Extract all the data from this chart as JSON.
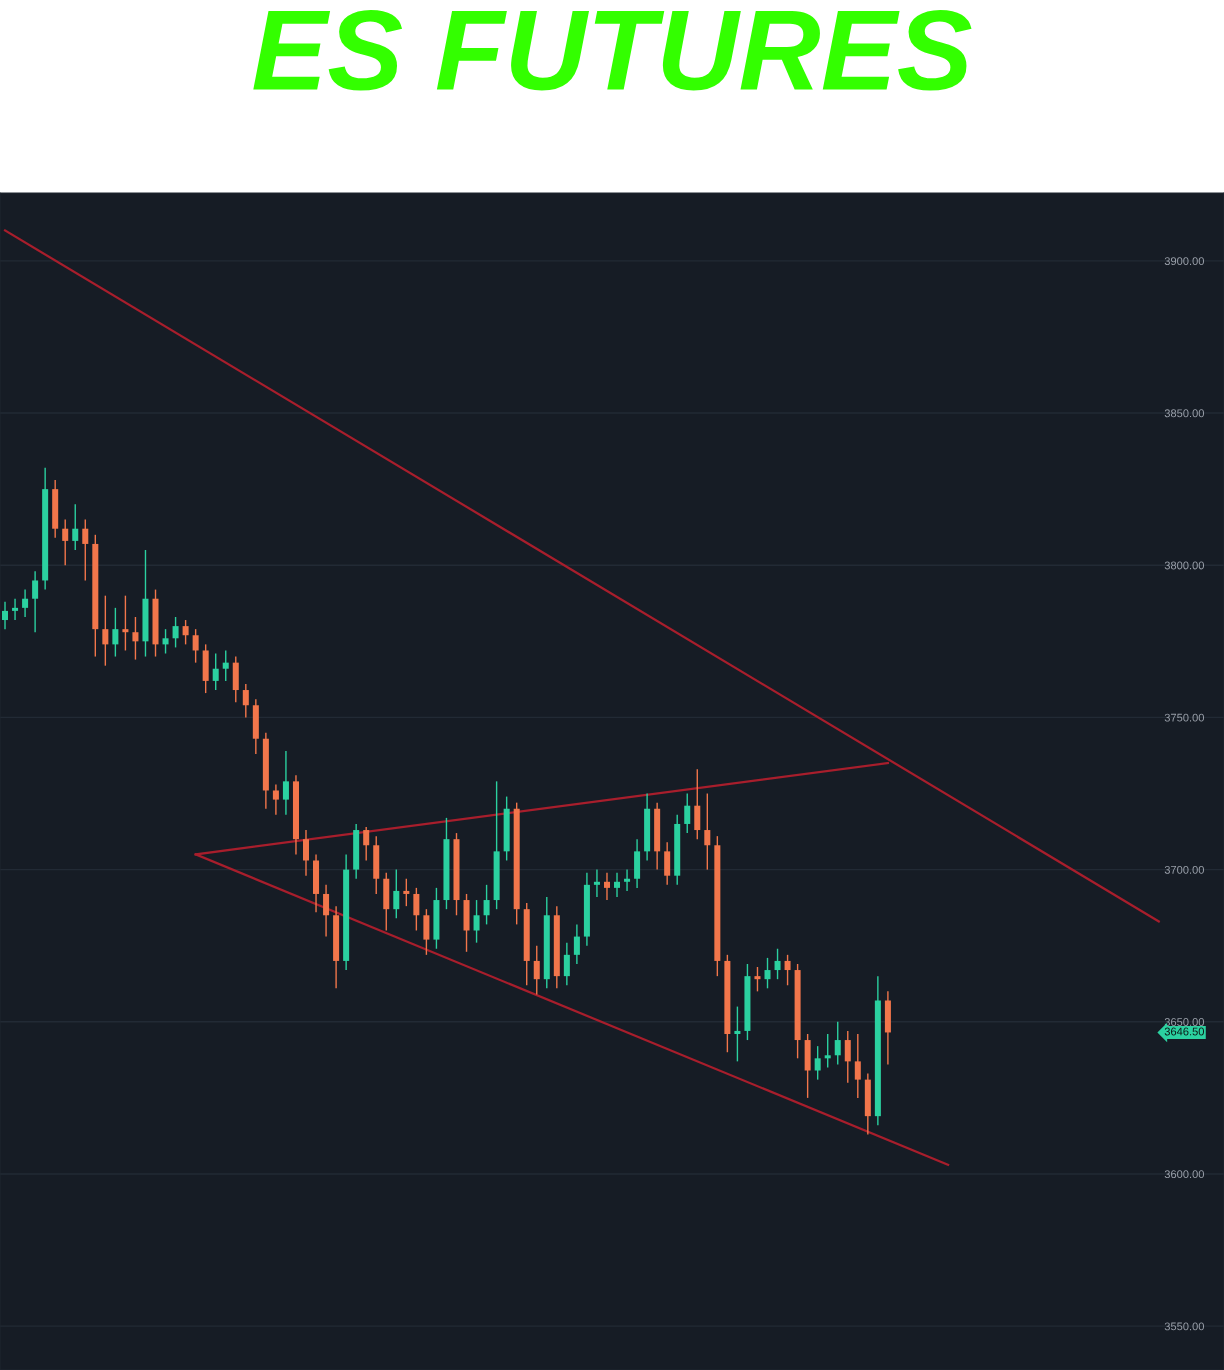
{
  "chart_data": {
    "type": "candlestick",
    "title": "ES FUTURES",
    "categories": [
      null,
      null,
      null,
      null,
      null,
      null,
      null,
      null,
      null,
      null,
      null,
      null,
      null,
      null,
      null,
      null,
      null,
      null,
      null,
      null,
      null,
      null,
      null,
      null,
      null,
      null,
      null,
      null,
      null,
      null,
      null,
      null,
      null,
      null,
      null,
      null,
      null,
      null,
      null,
      null,
      null,
      null,
      null,
      null,
      null,
      null,
      null,
      null,
      null,
      null,
      null,
      null,
      null,
      null,
      null,
      null,
      null,
      null,
      null,
      null,
      null,
      null,
      null,
      null,
      null,
      null,
      null,
      null,
      null,
      null,
      null,
      null,
      null,
      null,
      null,
      null,
      null,
      null,
      null,
      null,
      null,
      null,
      null,
      null,
      null,
      null,
      null,
      null,
      null,
      null,
      null,
      null,
      null,
      null,
      null,
      null,
      null,
      null,
      null,
      null,
      null,
      null,
      null,
      null,
      null,
      null,
      null,
      null,
      null,
      null,
      null,
      null,
      null,
      null,
      null,
      null,
      null,
      null,
      null,
      null,
      null,
      null
    ],
    "ohlc": [
      [
        3782,
        3788,
        3779,
        3785
      ],
      [
        3785,
        3789,
        3782,
        3786
      ],
      [
        3786,
        3792,
        3783,
        3789
      ],
      [
        3789,
        3798,
        3778,
        3795
      ],
      [
        3795,
        3832,
        3792,
        3825
      ],
      [
        3825,
        3828,
        3809,
        3812
      ],
      [
        3812,
        3815,
        3800,
        3808
      ],
      [
        3808,
        3820,
        3805,
        3812
      ],
      [
        3812,
        3815,
        3795,
        3807
      ],
      [
        3807,
        3810,
        3770,
        3779
      ],
      [
        3779,
        3790,
        3767,
        3774
      ],
      [
        3774,
        3786,
        3770,
        3779
      ],
      [
        3779,
        3790,
        3772,
        3778
      ],
      [
        3778,
        3783,
        3769,
        3775
      ],
      [
        3775,
        3805,
        3770,
        3789
      ],
      [
        3789,
        3792,
        3770,
        3774
      ],
      [
        3774,
        3779,
        3771,
        3776
      ],
      [
        3776,
        3783,
        3773,
        3780
      ],
      [
        3780,
        3782,
        3774,
        3777
      ],
      [
        3777,
        3779,
        3768,
        3772
      ],
      [
        3772,
        3774,
        3758,
        3762
      ],
      [
        3762,
        3771,
        3759,
        3766
      ],
      [
        3766,
        3772,
        3762,
        3768
      ],
      [
        3768,
        3770,
        3755,
        3759
      ],
      [
        3759,
        3761,
        3750,
        3754
      ],
      [
        3754,
        3756,
        3738,
        3743
      ],
      [
        3743,
        3745,
        3720,
        3726
      ],
      [
        3726,
        3728,
        3718,
        3723
      ],
      [
        3723,
        3739,
        3718,
        3729
      ],
      [
        3729,
        3731,
        3705,
        3710
      ],
      [
        3710,
        3713,
        3698,
        3703
      ],
      [
        3703,
        3705,
        3686,
        3692
      ],
      [
        3692,
        3695,
        3678,
        3685
      ],
      [
        3685,
        3688,
        3661,
        3670
      ],
      [
        3670,
        3705,
        3667,
        3700
      ],
      [
        3700,
        3715,
        3697,
        3713
      ],
      [
        3713,
        3714,
        3703,
        3708
      ],
      [
        3708,
        3711,
        3692,
        3697
      ],
      [
        3697,
        3699,
        3680,
        3687
      ],
      [
        3687,
        3700,
        3684,
        3693
      ],
      [
        3693,
        3697,
        3688,
        3692
      ],
      [
        3692,
        3694,
        3680,
        3685
      ],
      [
        3685,
        3687,
        3672,
        3677
      ],
      [
        3677,
        3694,
        3674,
        3690
      ],
      [
        3690,
        3717,
        3687,
        3710
      ],
      [
        3710,
        3712,
        3685,
        3690
      ],
      [
        3690,
        3692,
        3673,
        3680
      ],
      [
        3680,
        3690,
        3676,
        3685
      ],
      [
        3685,
        3695,
        3682,
        3690
      ],
      [
        3690,
        3729,
        3687,
        3706
      ],
      [
        3706,
        3724,
        3703,
        3720
      ],
      [
        3720,
        3722,
        3682,
        3687
      ],
      [
        3687,
        3689,
        3662,
        3670
      ],
      [
        3670,
        3675,
        3659,
        3664
      ],
      [
        3664,
        3691,
        3661,
        3685
      ],
      [
        3685,
        3688,
        3661,
        3665
      ],
      [
        3665,
        3676,
        3662,
        3672
      ],
      [
        3672,
        3682,
        3669,
        3678
      ],
      [
        3678,
        3699,
        3675,
        3695
      ],
      [
        3695,
        3700,
        3691,
        3696
      ],
      [
        3696,
        3699,
        3690,
        3694
      ],
      [
        3694,
        3699,
        3691,
        3696
      ],
      [
        3696,
        3700,
        3693,
        3697
      ],
      [
        3697,
        3710,
        3694,
        3706
      ],
      [
        3706,
        3725,
        3703,
        3720
      ],
      [
        3720,
        3722,
        3700,
        3706
      ],
      [
        3706,
        3709,
        3695,
        3698
      ],
      [
        3698,
        3718,
        3695,
        3715
      ],
      [
        3715,
        3725,
        3712,
        3721
      ],
      [
        3721,
        3733,
        3710,
        3713
      ],
      [
        3713,
        3725,
        3700,
        3708
      ],
      [
        3708,
        3711,
        3665,
        3670
      ],
      [
        3670,
        3672,
        3640,
        3646
      ],
      [
        3646,
        3655,
        3637,
        3647
      ],
      [
        3647,
        3669,
        3644,
        3665
      ],
      [
        3665,
        3668,
        3660,
        3664
      ],
      [
        3664,
        3671,
        3661,
        3667
      ],
      [
        3667,
        3674,
        3664,
        3670
      ],
      [
        3670,
        3672,
        3662,
        3667
      ],
      [
        3667,
        3669,
        3638,
        3644
      ],
      [
        3644,
        3646,
        3625,
        3634
      ],
      [
        3634,
        3642,
        3631,
        3638
      ],
      [
        3638,
        3646,
        3635,
        3639
      ],
      [
        3639,
        3650,
        3636,
        3644
      ],
      [
        3644,
        3647,
        3630,
        3637
      ],
      [
        3637,
        3646,
        3625,
        3631
      ],
      [
        3631,
        3633,
        3613,
        3619
      ],
      [
        3619,
        3665,
        3616,
        3657
      ],
      [
        3657,
        3660,
        3636,
        3646.5
      ],
      null,
      null,
      null,
      null,
      null,
      null,
      null,
      null,
      null,
      null,
      null,
      null,
      null,
      null,
      null,
      null,
      null,
      null,
      null,
      null,
      null,
      null,
      null,
      null,
      null,
      null,
      null,
      null,
      null,
      null,
      null,
      null,
      null
    ],
    "colors": [
      "#2bd1a0",
      "#2bd1a0",
      "#2bd1a0",
      "#2bd1a0",
      "#2bd1a0",
      "#f2764b",
      "#f2764b",
      "#2bd1a0",
      "#f2764b",
      "#f2764b",
      "#f2764b",
      "#2bd1a0",
      "#f2764b",
      "#f2764b",
      "#2bd1a0",
      "#f2764b",
      "#2bd1a0",
      "#2bd1a0",
      "#f2764b",
      "#f2764b",
      "#f2764b",
      "#2bd1a0",
      "#2bd1a0",
      "#f2764b",
      "#f2764b",
      "#f2764b",
      "#f2764b",
      "#f2764b",
      "#2bd1a0",
      "#f2764b",
      "#f2764b",
      "#f2764b",
      "#f2764b",
      "#f2764b",
      "#2bd1a0",
      "#2bd1a0",
      "#f2764b",
      "#f2764b",
      "#f2764b",
      "#2bd1a0",
      "#f2764b",
      "#f2764b",
      "#f2764b",
      "#2bd1a0",
      "#2bd1a0",
      "#f2764b",
      "#f2764b",
      "#2bd1a0",
      "#2bd1a0",
      "#2bd1a0",
      "#2bd1a0",
      "#f2764b",
      "#f2764b",
      "#f2764b",
      "#2bd1a0",
      "#f2764b",
      "#2bd1a0",
      "#2bd1a0",
      "#2bd1a0",
      "#2bd1a0",
      "#f2764b",
      "#2bd1a0",
      "#2bd1a0",
      "#2bd1a0",
      "#2bd1a0",
      "#f2764b",
      "#f2764b",
      "#2bd1a0",
      "#2bd1a0",
      "#f2764b",
      "#f2764b",
      "#f2764b",
      "#f2764b",
      "#2bd1a0",
      "#2bd1a0",
      "#f2764b",
      "#2bd1a0",
      "#2bd1a0",
      "#f2764b",
      "#f2764b",
      "#f2764b",
      "#2bd1a0",
      "#2bd1a0",
      "#2bd1a0",
      "#f2764b",
      "#f2764b",
      "#f2764b",
      "#2bd1a0",
      "#f2764b",
      null,
      null,
      null,
      null,
      null,
      null,
      null,
      null,
      null,
      null,
      null,
      null,
      null,
      null,
      null,
      null,
      null,
      null,
      null,
      null,
      null,
      null,
      null,
      null,
      null,
      null,
      null,
      null,
      null,
      null,
      null,
      null,
      null
    ],
    "series": [
      {
        "type": "line",
        "color": "#a81e2c",
        "values": [
          3910,
          null,
          null,
          null,
          null,
          null,
          null,
          null,
          null,
          null,
          null,
          null,
          null,
          null,
          null,
          null,
          null,
          null,
          null,
          null,
          null,
          null,
          null,
          null,
          null,
          null,
          null,
          null,
          null,
          null,
          null,
          null,
          null,
          null,
          null,
          null,
          null,
          null,
          null,
          null,
          null,
          null,
          null,
          null,
          null,
          null,
          null,
          null,
          null,
          null,
          null,
          null,
          null,
          null,
          null,
          null,
          null,
          null,
          null,
          null,
          null,
          null,
          null,
          null,
          null,
          null,
          null,
          null,
          null,
          null,
          null,
          null,
          null,
          null,
          null,
          null,
          null,
          null,
          null,
          null,
          null,
          null,
          null,
          null,
          null,
          null,
          null,
          null,
          null,
          null,
          null,
          null,
          null,
          null,
          null,
          null,
          null,
          null,
          null,
          null,
          null,
          null,
          null,
          null,
          null,
          null,
          null,
          null,
          null,
          null,
          null,
          null,
          null,
          null,
          null,
          3683,
          null,
          null,
          null,
          null,
          null,
          null
        ]
      },
      {
        "type": "line",
        "color": "#a81e2c",
        "values": [
          null,
          null,
          null,
          null,
          null,
          null,
          null,
          null,
          null,
          null,
          null,
          null,
          null,
          null,
          null,
          null,
          null,
          null,
          null,
          3705,
          null,
          null,
          null,
          null,
          null,
          null,
          null,
          null,
          null,
          null,
          null,
          null,
          null,
          null,
          null,
          null,
          null,
          null,
          null,
          null,
          null,
          null,
          null,
          null,
          null,
          null,
          null,
          null,
          null,
          null,
          null,
          null,
          null,
          null,
          null,
          null,
          null,
          null,
          null,
          null,
          null,
          null,
          null,
          null,
          null,
          null,
          null,
          null,
          null,
          null,
          null,
          null,
          null,
          null,
          null,
          null,
          null,
          null,
          null,
          null,
          null,
          null,
          null,
          null,
          null,
          null,
          null,
          null,
          3735,
          null,
          null,
          null,
          null,
          null,
          null,
          null,
          null,
          null,
          null,
          null,
          null,
          null,
          null,
          null,
          null,
          null,
          null,
          null,
          null,
          null,
          null,
          null,
          null,
          null,
          null,
          null,
          null,
          null,
          null,
          null,
          null,
          null
        ]
      },
      {
        "type": "line",
        "color": "#a81e2c",
        "values": [
          null,
          null,
          null,
          null,
          null,
          null,
          null,
          null,
          null,
          null,
          null,
          null,
          null,
          null,
          null,
          null,
          null,
          null,
          null,
          3705,
          null,
          null,
          null,
          null,
          null,
          null,
          null,
          null,
          null,
          null,
          null,
          null,
          null,
          null,
          null,
          null,
          null,
          null,
          null,
          null,
          null,
          null,
          null,
          null,
          null,
          null,
          null,
          null,
          null,
          null,
          null,
          null,
          null,
          null,
          null,
          null,
          null,
          null,
          null,
          null,
          null,
          null,
          null,
          null,
          null,
          null,
          null,
          null,
          null,
          null,
          null,
          null,
          null,
          null,
          null,
          null,
          null,
          null,
          null,
          null,
          null,
          null,
          null,
          null,
          null,
          null,
          null,
          null,
          null,
          null,
          null,
          null,
          null,
          null,
          3603,
          null,
          null,
          null,
          null,
          null,
          null,
          null,
          null,
          null,
          null,
          null,
          null,
          null,
          null,
          null,
          null,
          null,
          null,
          null,
          null,
          null,
          null,
          null,
          null,
          null,
          null,
          null
        ]
      }
    ],
    "annotations": [
      "3646.50"
    ],
    "ylim": [
      3535.6,
      3922.3
    ],
    "yticks": [
      {
        "value": 3550,
        "label": "3550.00"
      },
      {
        "value": 3600,
        "label": "3600.00"
      },
      {
        "value": 3650,
        "label": "3650.00"
      },
      {
        "value": 3700,
        "label": "3700.00"
      },
      {
        "value": 3750,
        "label": "3750.00"
      },
      {
        "value": 3800,
        "label": "3800.00"
      },
      {
        "value": 3850,
        "label": "3850.00"
      },
      {
        "value": 3900,
        "label": "3900.00"
      }
    ],
    "tick_labels": "y",
    "grid": "y"
  }
}
